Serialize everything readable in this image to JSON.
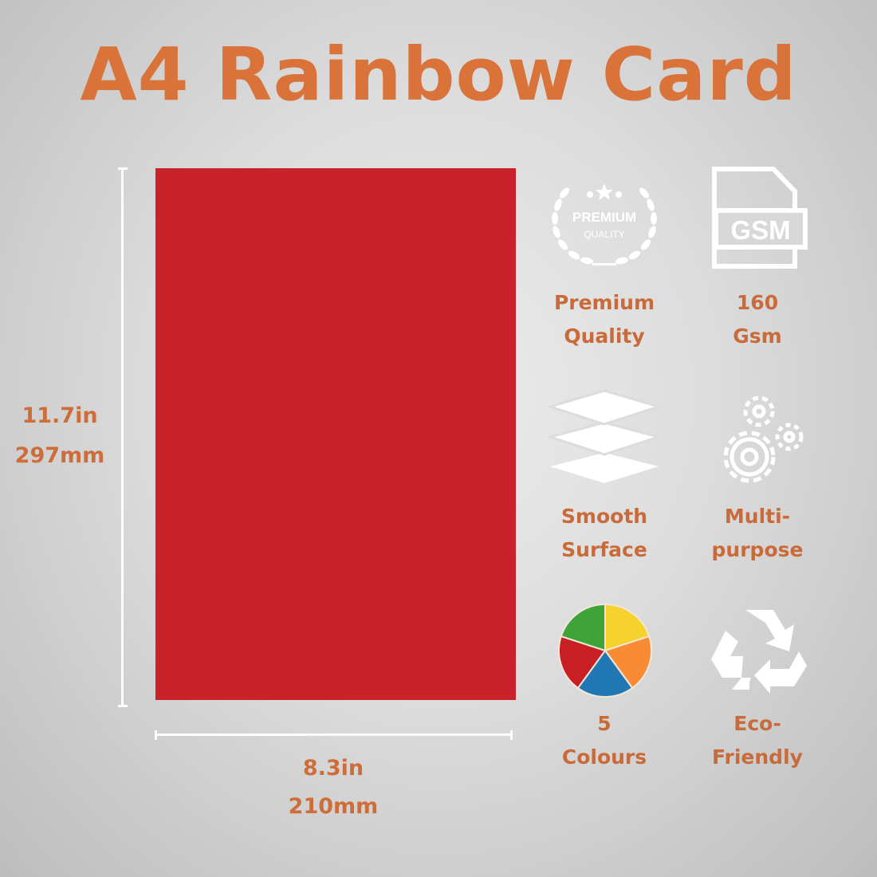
{
  "title": "A4 Rainbow Card",
  "card_color": "#c8222a",
  "height_dim": {
    "inches": "11.7in",
    "mm": "297mm"
  },
  "width_dim": {
    "inches": "8.3in",
    "mm": "210mm"
  },
  "badge_text": {
    "line1": "PREMIUM",
    "line2": "QUALITY"
  },
  "gsm_icon_text": "GSM",
  "features": [
    {
      "icon": "premium-quality-badge-icon",
      "line1": "Premium",
      "line2": "Quality"
    },
    {
      "icon": "gsm-file-icon",
      "line1": "160",
      "line2": "Gsm"
    },
    {
      "icon": "layers-icon",
      "line1": "Smooth",
      "line2": "Surface"
    },
    {
      "icon": "gears-icon",
      "line1": "Multi-",
      "line2": "purpose"
    },
    {
      "icon": "color-pie-icon",
      "line1": "5",
      "line2": "Colours"
    },
    {
      "icon": "recycle-icon",
      "line1": "Eco-",
      "line2": "Friendly"
    }
  ],
  "pie_colors": [
    "#f5d22c",
    "#f98b35",
    "#2077b4",
    "#c81f25",
    "#3fa33a"
  ],
  "accent_color": "#d9733a"
}
